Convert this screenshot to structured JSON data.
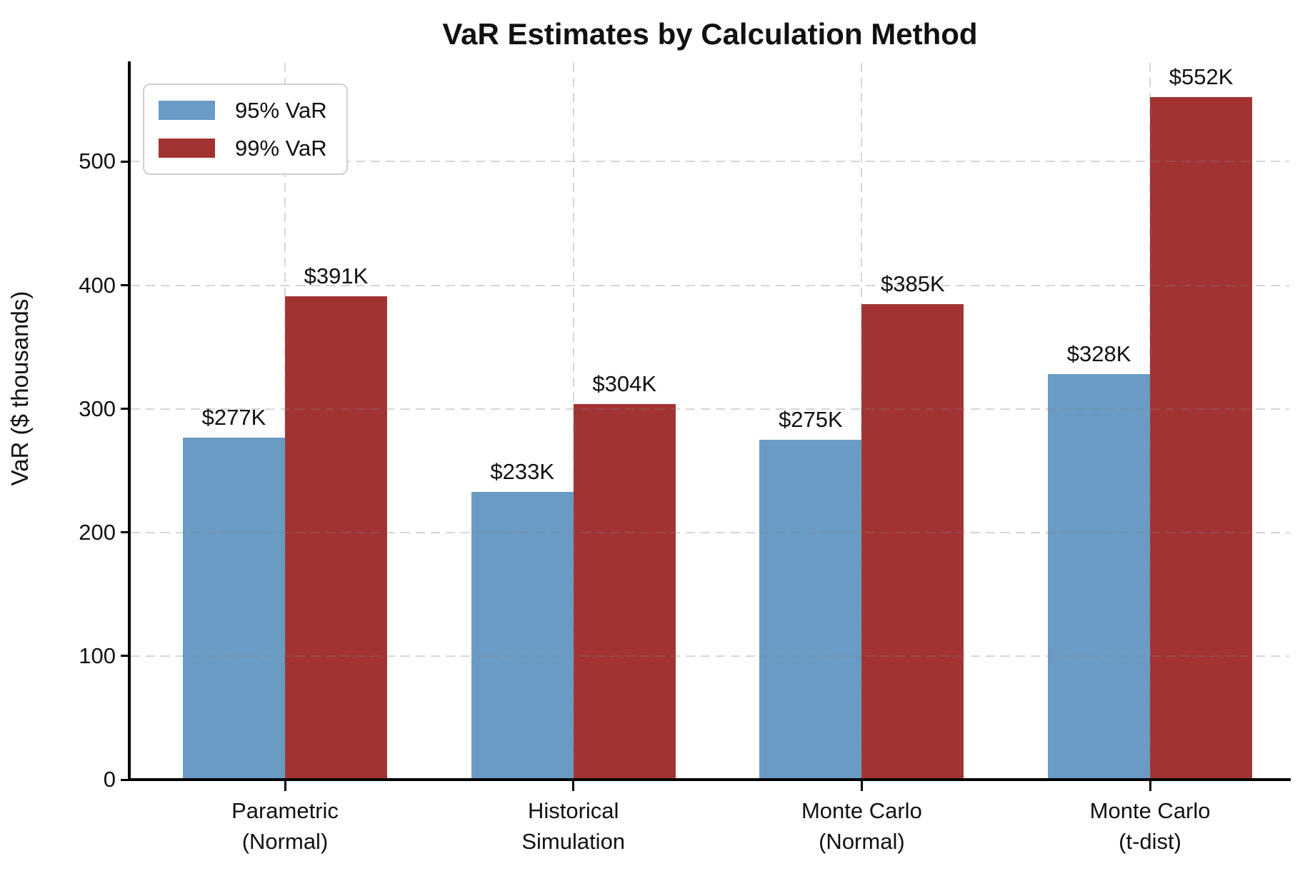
{
  "title": "VaR Estimates by Calculation Method",
  "chart_data": {
    "type": "bar",
    "title": "VaR Estimates by Calculation Method",
    "categories": [
      "Parametric\n(Normal)",
      "Historical\nSimulation",
      "Monte Carlo\n(Normal)",
      "Monte Carlo\n(t-dist)"
    ],
    "series": [
      {
        "name": "95% VaR",
        "color": "#6A9BC4",
        "values": [
          277,
          233,
          275,
          328
        ],
        "labels": [
          "$277K",
          "$233K",
          "$275K",
          "$328K"
        ]
      },
      {
        "name": "99% VaR",
        "color": "#A33333",
        "values": [
          391,
          304,
          385,
          552
        ],
        "labels": [
          "$391K",
          "$304K",
          "$385K",
          "$552K"
        ]
      }
    ],
    "xlabel": "",
    "ylabel": "VaR ($ thousands)",
    "ylim": [
      0,
      580
    ],
    "yticks": [
      0,
      100,
      200,
      300,
      400,
      500
    ],
    "grid": true,
    "grid_style": "dashed",
    "legend_position": "upper left",
    "background": "#ffffff",
    "axis_color": "#000000",
    "text_color": "#111111"
  }
}
